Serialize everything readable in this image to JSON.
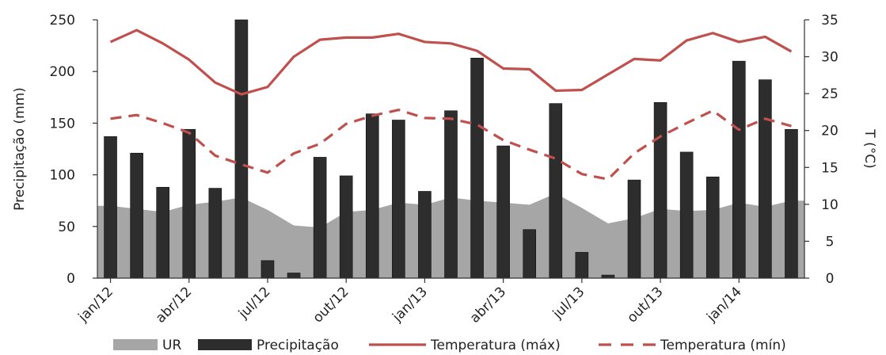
{
  "chart_data": {
    "type": "bar",
    "categories": [
      "jan/12",
      "fev/12",
      "mar/12",
      "abr/12",
      "mai/12",
      "jun/12",
      "jul/12",
      "ago/12",
      "set/12",
      "out/12",
      "nov/12",
      "dez/12",
      "jan/13",
      "fev/13",
      "mar/13",
      "abr/13",
      "mai/13",
      "jun/13",
      "jul/13",
      "ago/13",
      "set/13",
      "out/13",
      "nov/13",
      "dez/13",
      "jan/14",
      "fev/14",
      "mar/14"
    ],
    "x_tick_labels": [
      "jan/12",
      "abr/12",
      "jul/12",
      "out/12",
      "jan/13",
      "abr/13",
      "jul/13",
      "out/13",
      "jan/14"
    ],
    "series": [
      {
        "name": "Precipitação",
        "type": "bar",
        "axis": "left",
        "color": "#2d2d2d",
        "values": [
          137,
          121,
          88,
          144,
          87,
          250,
          17,
          5,
          117,
          99,
          159,
          153,
          84,
          162,
          213,
          128,
          47,
          169,
          25,
          3,
          95,
          170,
          122,
          98,
          210,
          192,
          144
        ]
      },
      {
        "name": "UR",
        "type": "area",
        "axis": "left",
        "color": "#a6a6a6",
        "values": [
          70,
          67,
          64,
          71,
          74,
          78,
          66,
          51,
          49,
          64,
          66,
          73,
          71,
          78,
          75,
          73,
          71,
          82,
          68,
          53,
          58,
          67,
          65,
          66,
          73,
          69,
          75
        ]
      },
      {
        "name": "Temperatura (máx)",
        "type": "line",
        "axis": "right",
        "color": "#c0504d",
        "dash": "solid",
        "values": [
          32.0,
          33.6,
          31.8,
          29.6,
          26.5,
          24.9,
          25.9,
          30.0,
          32.3,
          32.6,
          32.6,
          33.1,
          32.0,
          31.8,
          30.8,
          28.4,
          28.3,
          25.4,
          25.5,
          27.6,
          29.7,
          29.5,
          32.2,
          33.2,
          32.0,
          32.7,
          30.7
        ]
      },
      {
        "name": "Temperatura (mín)",
        "type": "line",
        "axis": "right",
        "color": "#c0504d",
        "dash": "dashed",
        "values": [
          21.6,
          22.1,
          21.0,
          19.7,
          16.6,
          15.4,
          14.3,
          16.9,
          18.2,
          20.9,
          22.0,
          22.8,
          21.7,
          21.6,
          20.8,
          18.7,
          17.4,
          16.2,
          14.1,
          13.4,
          16.9,
          19.2,
          21.0,
          22.7,
          20.1,
          21.6,
          20.6
        ]
      }
    ],
    "ylabel": "Precipitação (mm)",
    "ylabel_right": "T (°C)",
    "ylim": [
      0,
      250
    ],
    "yticks": [
      0,
      50,
      100,
      150,
      200,
      250
    ],
    "ylim_right": [
      0,
      35
    ],
    "yticks_right": [
      0,
      5,
      10,
      15,
      20,
      25,
      30,
      35
    ],
    "grid": false,
    "legend_position": "bottom",
    "legend": [
      "UR",
      "Precipitação",
      "Temperatura (máx)",
      "Temperatura (mín)"
    ]
  }
}
